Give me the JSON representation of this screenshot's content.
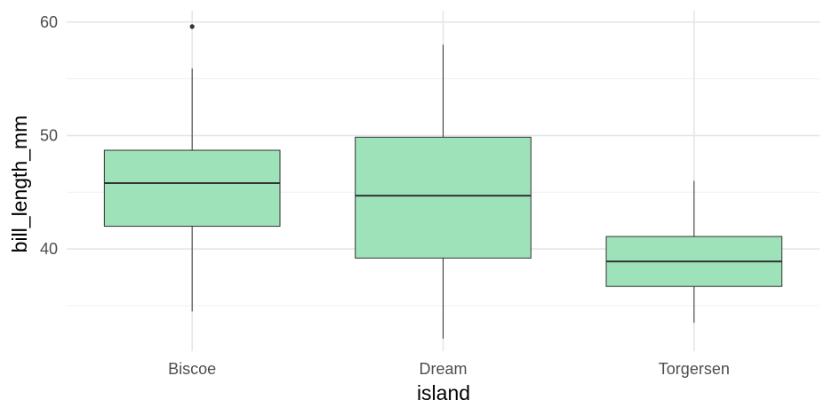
{
  "chart_data": {
    "type": "boxplot",
    "title": "",
    "xlabel": "island",
    "ylabel": "bill_length_mm",
    "categories": [
      "Biscoe",
      "Dream",
      "Torgersen"
    ],
    "boxes": [
      {
        "category": "Biscoe",
        "whisker_low": 34.5,
        "q1": 42.0,
        "median": 45.8,
        "q3": 48.7,
        "whisker_high": 55.9,
        "outliers": [
          59.6
        ]
      },
      {
        "category": "Dream",
        "whisker_low": 32.1,
        "q1": 39.2,
        "median": 44.7,
        "q3": 49.85,
        "whisker_high": 58.0,
        "outliers": []
      },
      {
        "category": "Torgersen",
        "whisker_low": 33.5,
        "q1": 36.7,
        "median": 38.9,
        "q3": 41.1,
        "whisker_high": 46.0,
        "outliers": []
      }
    ],
    "ylim": [
      31.0,
      61.0
    ],
    "yticks": [
      40,
      50,
      60
    ],
    "grid": true,
    "legend": "none",
    "colors": {
      "box_fill": "#9de2b9",
      "box_stroke": "#333333",
      "grid_major": "#e6e6e6",
      "grid_minor": "#f0f0f0"
    }
  }
}
